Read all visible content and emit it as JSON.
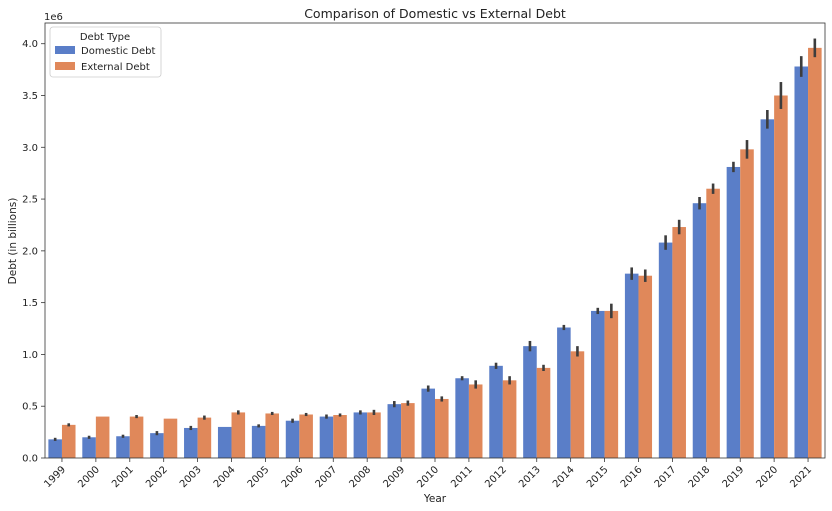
{
  "chart_data": {
    "type": "bar",
    "title": "Comparison of Domestic vs External Debt",
    "xlabel": "Year",
    "ylabel": "Debt (in billions)",
    "y_offset_label": "1e6",
    "ylim": [
      0,
      4200000
    ],
    "yticks": [
      0,
      500000,
      1000000,
      1500000,
      2000000,
      2500000,
      3000000,
      3500000,
      4000000
    ],
    "ytick_labels": [
      "0.0",
      "0.5",
      "1.0",
      "1.5",
      "2.0",
      "2.5",
      "3.0",
      "3.5",
      "4.0"
    ],
    "grid": false,
    "legend": {
      "title": "Debt Type",
      "position": "top-left"
    },
    "categories": [
      "1999",
      "2000",
      "2001",
      "2002",
      "2003",
      "2004",
      "2005",
      "2006",
      "2007",
      "2008",
      "2009",
      "2010",
      "2011",
      "2012",
      "2013",
      "2014",
      "2015",
      "2016",
      "2017",
      "2018",
      "2019",
      "2020",
      "2021"
    ],
    "series": [
      {
        "name": "Domestic Debt",
        "color": "#5a7ec8",
        "values": [
          180000,
          200000,
          210000,
          240000,
          290000,
          300000,
          310000,
          360000,
          400000,
          440000,
          520000,
          670000,
          770000,
          890000,
          1080000,
          1260000,
          1420000,
          1780000,
          2080000,
          2460000,
          2810000,
          3270000,
          3780000
        ],
        "errors": [
          15000,
          15000,
          15000,
          20000,
          20000,
          0,
          15000,
          20000,
          20000,
          20000,
          30000,
          30000,
          20000,
          30000,
          50000,
          25000,
          30000,
          60000,
          70000,
          60000,
          50000,
          90000,
          100000
        ]
      },
      {
        "name": "External Debt",
        "color": "#e0885a",
        "values": [
          320000,
          400000,
          400000,
          380000,
          390000,
          440000,
          430000,
          420000,
          415000,
          440000,
          530000,
          570000,
          710000,
          750000,
          870000,
          1030000,
          1420000,
          1760000,
          2230000,
          2600000,
          2980000,
          3500000,
          3960000
        ],
        "errors": [
          15000,
          0,
          15000,
          0,
          20000,
          20000,
          15000,
          15000,
          15000,
          25000,
          25000,
          25000,
          40000,
          40000,
          30000,
          50000,
          70000,
          60000,
          70000,
          50000,
          90000,
          130000,
          90000
        ]
      }
    ]
  }
}
